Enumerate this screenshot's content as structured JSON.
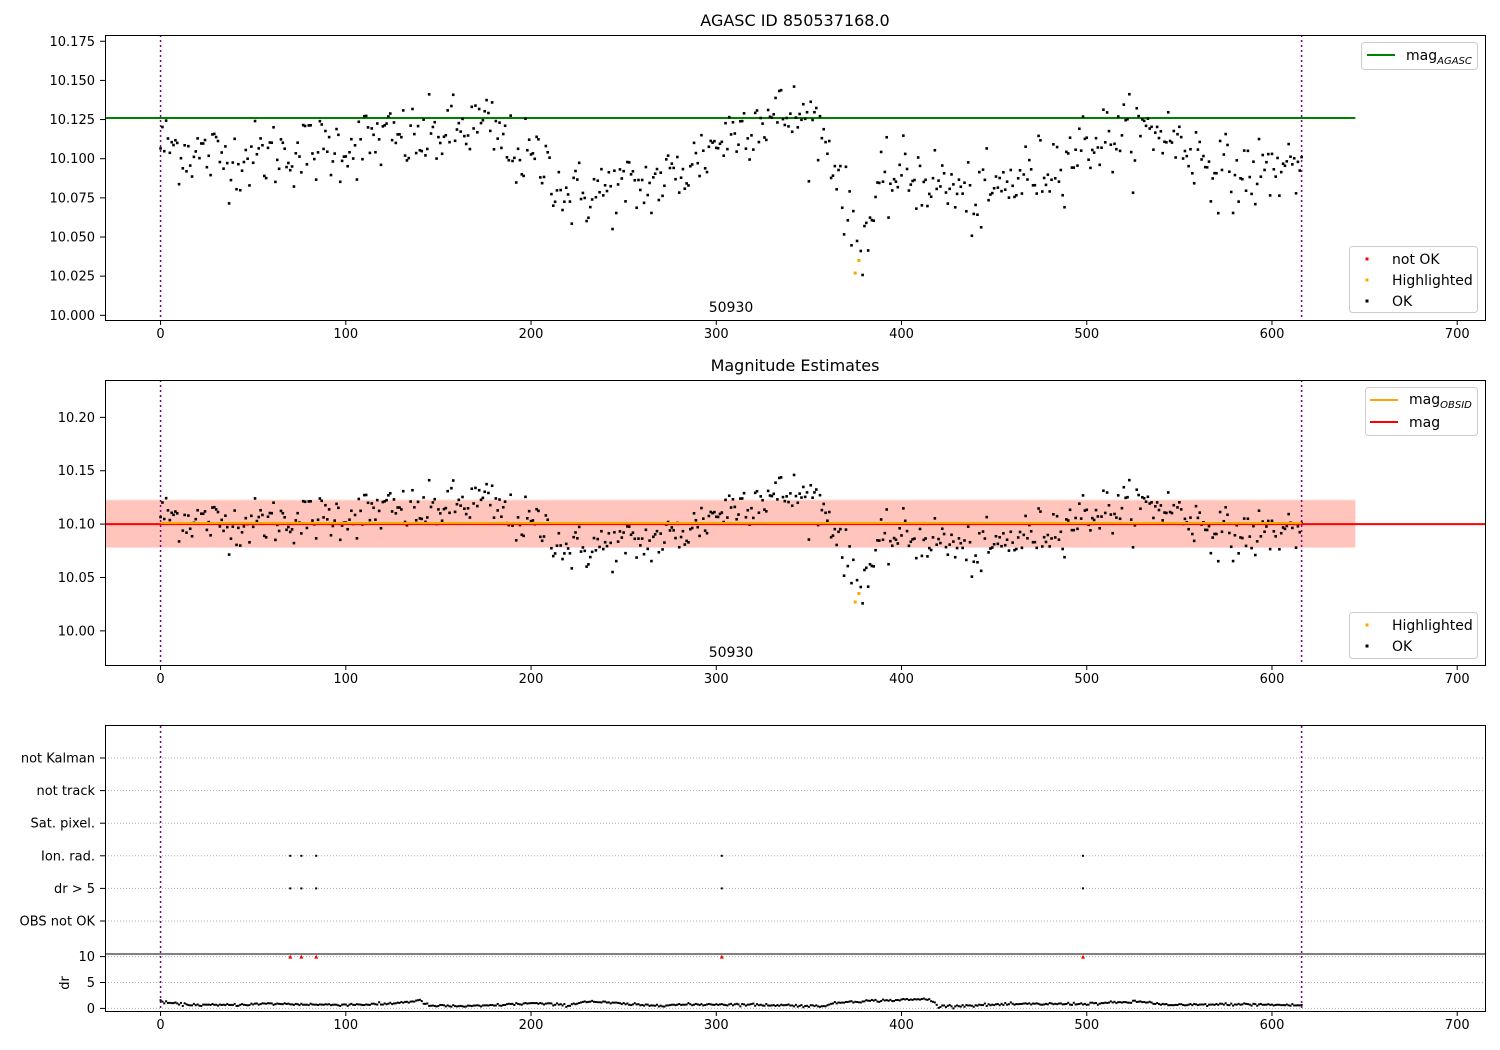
{
  "chart_data": [
    {
      "type": "scatter",
      "title": "AGASC ID 850537168.0",
      "xlim": [
        -30,
        715
      ],
      "ylim": [
        9.997,
        10.179
      ],
      "x_ticks": [
        0,
        100,
        200,
        300,
        400,
        500,
        600,
        700
      ],
      "y_ticks": [
        10.0,
        10.025,
        10.05,
        10.075,
        10.1,
        10.125,
        10.15,
        10.175
      ],
      "obsid_label": "50930",
      "obs_boundaries": [
        0,
        616
      ],
      "lines": [
        {
          "name": "mag_AGASC",
          "label_main": "mag",
          "label_sub": "AGASC",
          "y": 10.126,
          "color": "#008000"
        }
      ],
      "legend_top": "top-right",
      "legend_bottom": [
        {
          "label": "not OK",
          "color": "#ff0000"
        },
        {
          "label": "Highlighted",
          "color": "#ffa500"
        },
        {
          "label": "OK",
          "color": "#000000"
        }
      ],
      "highlighted": [
        {
          "x": 375,
          "y": 10.027
        },
        {
          "x": 377,
          "y": 10.035
        }
      ],
      "series_profile": [
        [
          0,
          10.11
        ],
        [
          20,
          10.103
        ],
        [
          40,
          10.1
        ],
        [
          60,
          10.103
        ],
        [
          80,
          10.105
        ],
        [
          100,
          10.108
        ],
        [
          120,
          10.113
        ],
        [
          140,
          10.112
        ],
        [
          160,
          10.118
        ],
        [
          175,
          10.122
        ],
        [
          190,
          10.105
        ],
        [
          210,
          10.095
        ],
        [
          220,
          10.075
        ],
        [
          240,
          10.08
        ],
        [
          260,
          10.082
        ],
        [
          280,
          10.09
        ],
        [
          300,
          10.11
        ],
        [
          320,
          10.125
        ],
        [
          340,
          10.128
        ],
        [
          355,
          10.122
        ],
        [
          365,
          10.095
        ],
        [
          372,
          10.06
        ],
        [
          380,
          10.05
        ],
        [
          390,
          10.082
        ],
        [
          400,
          10.09
        ],
        [
          420,
          10.085
        ],
        [
          440,
          10.072
        ],
        [
          460,
          10.085
        ],
        [
          480,
          10.095
        ],
        [
          500,
          10.11
        ],
        [
          520,
          10.115
        ],
        [
          540,
          10.118
        ],
        [
          560,
          10.102
        ],
        [
          580,
          10.088
        ],
        [
          600,
          10.093
        ],
        [
          616,
          10.098
        ]
      ],
      "noise_sd": 0.013
    },
    {
      "type": "scatter",
      "title": "Magnitude Estimates",
      "xlim": [
        -30,
        715
      ],
      "ylim": [
        9.968,
        10.235
      ],
      "x_ticks": [
        0,
        100,
        200,
        300,
        400,
        500,
        600,
        700
      ],
      "y_ticks": [
        10.0,
        10.05,
        10.1,
        10.15,
        10.2
      ],
      "obsid_label": "50930",
      "obs_boundaries": [
        0,
        616
      ],
      "mag": 10.1,
      "mag_band": [
        10.078,
        10.122
      ],
      "mag_obsid": 10.101,
      "obsid_band": [
        10.078,
        10.123
      ],
      "lines": [
        {
          "name": "mag_OBSID",
          "label_main": "mag",
          "label_sub": "OBSID",
          "color": "#ffa500"
        },
        {
          "name": "mag",
          "label_main": "mag",
          "label_sub": "",
          "color": "#ff0000"
        }
      ],
      "legend_bottom": [
        {
          "label": "Highlighted",
          "color": "#ffa500"
        },
        {
          "label": "OK",
          "color": "#000000"
        }
      ]
    },
    {
      "type": "scatter",
      "xlim": [
        -30,
        715
      ],
      "x_ticks": [
        0,
        100,
        200,
        300,
        400,
        500,
        600,
        700
      ],
      "flag_rows": [
        "not Kalman",
        "not track",
        "Sat. pixel.",
        "Ion. rad.",
        "dr > 5",
        "OBS not OK"
      ],
      "flag_points": {
        "Ion. rad.": [
          70,
          76,
          84,
          303,
          498
        ],
        "dr > 5": [
          70,
          76,
          84,
          303,
          498
        ]
      },
      "dr": {
        "ylabel": "dr",
        "ylim": [
          -0.5,
          10.5
        ],
        "y_ticks": [
          0,
          5,
          10
        ],
        "outliers_x": [
          70,
          76,
          84,
          303,
          498
        ],
        "outlier_value": 10,
        "profile": [
          [
            0,
            1.3
          ],
          [
            10,
            0.8
          ],
          [
            30,
            0.6
          ],
          [
            60,
            0.9
          ],
          [
            90,
            0.7
          ],
          [
            120,
            0.8
          ],
          [
            140,
            1.5
          ],
          [
            145,
            0.5
          ],
          [
            170,
            0.4
          ],
          [
            200,
            1.0
          ],
          [
            220,
            0.6
          ],
          [
            230,
            1.4
          ],
          [
            260,
            0.6
          ],
          [
            300,
            0.8
          ],
          [
            340,
            0.6
          ],
          [
            355,
            0.4
          ],
          [
            370,
            1.3
          ],
          [
            415,
            1.8
          ],
          [
            420,
            0.4
          ],
          [
            460,
            0.8
          ],
          [
            500,
            0.9
          ],
          [
            530,
            1.3
          ],
          [
            545,
            0.6
          ],
          [
            580,
            0.8
          ],
          [
            616,
            0.6
          ]
        ]
      }
    }
  ]
}
